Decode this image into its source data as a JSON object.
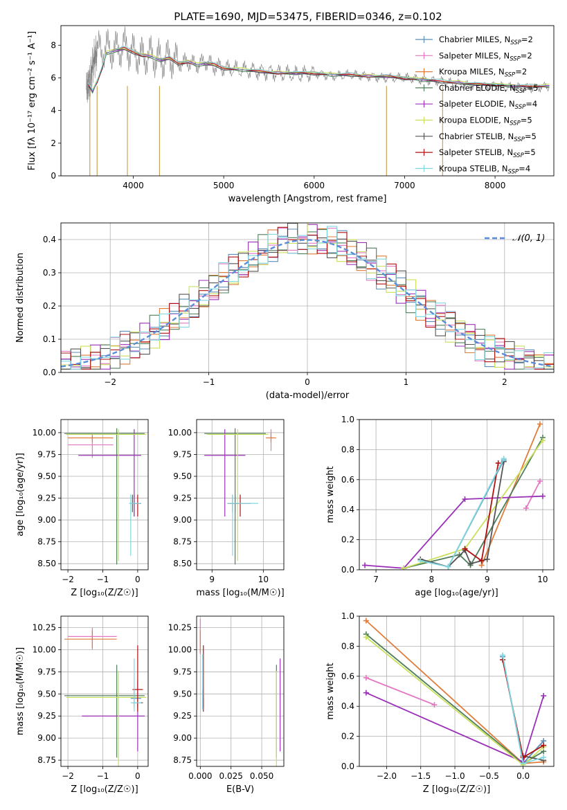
{
  "figure": {
    "title": "PLATE=1690, MJD=53475, FIBERID=0346, z=0.102"
  },
  "models": [
    {
      "name": "Chabrier MILES",
      "nssp": "2",
      "color": "#5b8db8"
    },
    {
      "name": "Salpeter MILES",
      "nssp": "2",
      "color": "#e377c2"
    },
    {
      "name": "Kroupa MILES",
      "nssp": "2",
      "color": "#e07b39"
    },
    {
      "name": "Chabrier ELODIE",
      "nssp": "5",
      "color": "#4f7f5a"
    },
    {
      "name": "Salpeter ELODIE",
      "nssp": "4",
      "color": "#9b30b8"
    },
    {
      "name": "Kroupa ELODIE",
      "nssp": "5",
      "color": "#c8e05a"
    },
    {
      "name": "Chabrier STELIB",
      "nssp": "5",
      "color": "#555555"
    },
    {
      "name": "Salpeter STELIB",
      "nssp": "5",
      "color": "#b01010"
    },
    {
      "name": "Kroupa STELIB",
      "nssp": "4",
      "color": "#7fd8e0"
    }
  ],
  "chart_data": [
    {
      "id": "spectrum",
      "type": "line",
      "xlabel": "wavelength [Angstrom, rest frame]",
      "ylabel": "Flux [fλ 10⁻¹⁷ erg cm⁻² s⁻¹ A⁻¹]",
      "xlim": [
        3200,
        8650
      ],
      "ylim": [
        0,
        9.2
      ],
      "xticks": [
        4000,
        5000,
        6000,
        7000,
        8000
      ],
      "yticks": [
        0,
        2,
        4,
        6,
        8
      ],
      "observed_color": "#808080",
      "observed": {
        "x": [
          3480,
          3520,
          3560,
          3600,
          3700,
          3800,
          3900,
          4000,
          4100,
          4200,
          4300,
          4400,
          4500,
          4600,
          4700,
          4800,
          4900,
          5000,
          5200,
          5400,
          5600,
          5800,
          6000,
          6200,
          6400,
          6600,
          6800,
          7000,
          7200,
          7400,
          7600,
          7800,
          8000,
          8200,
          8400,
          8600
        ],
        "y": [
          5.3,
          5.8,
          7.0,
          7.6,
          7.8,
          7.7,
          7.9,
          7.5,
          7.3,
          7.4,
          7.1,
          7.2,
          6.9,
          7.0,
          6.8,
          7.0,
          6.7,
          6.6,
          6.5,
          6.4,
          6.3,
          6.2,
          6.3,
          6.1,
          6.2,
          6.1,
          6.0,
          6.0,
          5.9,
          5.8,
          5.6,
          5.5,
          5.5,
          5.4,
          5.4,
          5.5
        ]
      },
      "model_fit": {
        "x": [
          3500,
          3550,
          3600,
          3650,
          3700,
          3800,
          3900,
          4000,
          4100,
          4200,
          4300,
          4400,
          4500,
          4600,
          4700,
          4800,
          4900,
          5000,
          5200,
          5400,
          5600,
          5800,
          6000,
          6200,
          6400,
          6600,
          6800,
          7000,
          7200,
          7400,
          7600,
          7800,
          8000,
          8200,
          8400,
          8600
        ],
        "y": [
          5.6,
          5.2,
          5.8,
          6.5,
          7.5,
          7.7,
          7.8,
          7.6,
          7.4,
          7.3,
          7.1,
          7.2,
          6.9,
          7.0,
          6.8,
          6.9,
          6.8,
          6.6,
          6.5,
          6.4,
          6.3,
          6.3,
          6.3,
          6.2,
          6.2,
          6.1,
          6.1,
          6.0,
          5.9,
          5.8,
          5.7,
          5.6,
          5.6,
          5.5,
          5.5,
          5.5
        ]
      }
    },
    {
      "id": "residuals",
      "type": "histogram",
      "xlabel": "(data-model)/error",
      "ylabel": "Normed distribution",
      "xlim": [
        -2.5,
        2.5
      ],
      "ylim": [
        0,
        0.45
      ],
      "xticks": [
        -2,
        -1,
        0,
        1,
        2
      ],
      "yticks": [
        0.0,
        0.1,
        0.2,
        0.3,
        0.4
      ],
      "gaussian_label": "𝒩(0, 1)",
      "gaussian_color": "#5b8dd9"
    },
    {
      "id": "age-vs-z",
      "type": "errorbar",
      "xlabel": "Z [log₁₀(Z/Z☉)]",
      "ylabel": "age  [log₁₀(age/yr)]",
      "xlim": [
        -2.2,
        0.3
      ],
      "ylim": [
        8.43,
        10.15
      ],
      "xticks": [
        -2,
        -1,
        0
      ],
      "yticks": [
        8.5,
        8.75,
        9.0,
        9.25,
        9.5,
        9.75,
        10.0
      ],
      "points": [
        {
          "m": 0,
          "x": -0.1,
          "y": 9.19,
          "xerr": [
            0.1,
            0.2
          ],
          "yerr": [
            0.15,
            0.1
          ]
        },
        {
          "m": 1,
          "x": -1.3,
          "y": 9.86,
          "xerr": [
            0.7,
            0.6
          ],
          "yerr": [
            0.15,
            0.1
          ]
        },
        {
          "m": 2,
          "x": -1.3,
          "y": 9.94,
          "xerr": [
            0.7,
            0.6
          ],
          "yerr": [
            0.05,
            0.05
          ]
        },
        {
          "m": 3,
          "x": -0.6,
          "y": 9.99,
          "xerr": [
            1.5,
            0.8
          ],
          "yerr": [
            1.5,
            0.06
          ]
        },
        {
          "m": 4,
          "x": -0.1,
          "y": 9.74,
          "xerr": [
            1.6,
            0.2
          ],
          "yerr": [
            0.7,
            0.3
          ]
        },
        {
          "m": 5,
          "x": -0.55,
          "y": 9.98,
          "xerr": [
            1.5,
            0.8
          ],
          "yerr": [
            1.45,
            0.06
          ]
        },
        {
          "m": 6,
          "x": -0.15,
          "y": 9.19,
          "xerr": [
            0.05,
            0.05
          ],
          "yerr": [
            0.1,
            0.1
          ]
        },
        {
          "m": 7,
          "x": 0.0,
          "y": 9.19,
          "xerr": [
            0.1,
            0.1
          ],
          "yerr": [
            0.15,
            0.1
          ]
        },
        {
          "m": 8,
          "x": -0.2,
          "y": 9.19,
          "xerr": [
            0.05,
            0.3
          ],
          "yerr": [
            0.6,
            0.1
          ]
        }
      ]
    },
    {
      "id": "age-vs-mass",
      "type": "errorbar",
      "xlabel": "mass [log₁₀(M/M☉)]",
      "ylabel": "",
      "xlim": [
        8.7,
        10.4
      ],
      "ylim": [
        8.43,
        10.15
      ],
      "xticks": [
        9,
        10
      ],
      "yticks": [
        8.5,
        8.75,
        9.0,
        9.25,
        9.5,
        9.75,
        10.0
      ],
      "points": [
        {
          "m": 0,
          "x": 9.45,
          "y": 9.19,
          "xerr": [
            0.1,
            0.1
          ],
          "yerr": [
            0.1,
            0.1
          ]
        },
        {
          "m": 1,
          "x": 10.15,
          "y": 9.94,
          "xerr": [
            0.05,
            0.05
          ],
          "yerr": [
            0.15,
            0.1
          ]
        },
        {
          "m": 2,
          "x": 10.15,
          "y": 9.94,
          "xerr": [
            0.1,
            0.1
          ],
          "yerr": [
            0.05,
            0.05
          ]
        },
        {
          "m": 3,
          "x": 9.45,
          "y": 9.99,
          "xerr": [
            0.6,
            0.6
          ],
          "yerr": [
            1.5,
            0.06
          ]
        },
        {
          "m": 4,
          "x": 9.25,
          "y": 9.74,
          "xerr": [
            0.4,
            0.4
          ],
          "yerr": [
            0.7,
            0.3
          ]
        },
        {
          "m": 5,
          "x": 9.5,
          "y": 9.98,
          "xerr": [
            0.6,
            0.6
          ],
          "yerr": [
            1.45,
            0.06
          ]
        },
        {
          "m": 6,
          "x": 9.4,
          "y": 9.19,
          "xerr": [
            0.1,
            0.1
          ],
          "yerr": [
            0.1,
            0.1
          ]
        },
        {
          "m": 7,
          "x": 9.55,
          "y": 9.19,
          "xerr": [
            0.25,
            0.2
          ],
          "yerr": [
            0.15,
            0.1
          ]
        },
        {
          "m": 8,
          "x": 9.4,
          "y": 9.19,
          "xerr": [
            0.1,
            0.5
          ],
          "yerr": [
            0.6,
            0.1
          ]
        }
      ]
    },
    {
      "id": "weight-vs-age",
      "type": "line",
      "xlabel": "age  [log₁₀(age/yr)]",
      "ylabel": "mass weight",
      "xlim": [
        6.7,
        10.2
      ],
      "ylim": [
        0,
        1.0
      ],
      "xticks": [
        7,
        8,
        9,
        10
      ],
      "yticks": [
        0.0,
        0.2,
        0.4,
        0.6,
        0.8,
        1.0
      ],
      "series": [
        {
          "m": 0,
          "x": [
            8.3,
            9.3
          ],
          "y": [
            0.02,
            0.73
          ]
        },
        {
          "m": 1,
          "x": [
            9.7,
            9.95
          ],
          "y": [
            0.41,
            0.59
          ]
        },
        {
          "m": 2,
          "x": [
            8.9,
            9.95
          ],
          "y": [
            0.03,
            0.97
          ]
        },
        {
          "m": 3,
          "x": [
            7.5,
            8.5,
            8.7,
            10.0
          ],
          "y": [
            0.01,
            0.1,
            0.03,
            0.88
          ]
        },
        {
          "m": 4,
          "x": [
            6.8,
            7.5,
            8.6,
            10.0
          ],
          "y": [
            0.03,
            0.01,
            0.47,
            0.49
          ]
        },
        {
          "m": 5,
          "x": [
            7.5,
            8.6,
            10.0
          ],
          "y": [
            0.01,
            0.14,
            0.86
          ]
        },
        {
          "m": 6,
          "x": [
            7.8,
            8.3,
            8.6,
            8.7,
            9.0,
            9.3
          ],
          "y": [
            0.07,
            0.02,
            0.13,
            0.04,
            0.07,
            0.72
          ]
        },
        {
          "m": 7,
          "x": [
            8.6,
            8.9,
            9.2
          ],
          "y": [
            0.14,
            0.06,
            0.71
          ]
        },
        {
          "m": 8,
          "x": [
            7.8,
            8.3,
            9.3
          ],
          "y": [
            0.06,
            0.02,
            0.74
          ]
        }
      ]
    },
    {
      "id": "mass-vs-z",
      "type": "errorbar",
      "xlabel": "Z [log₁₀(Z/Z☉)]",
      "ylabel": "mass [log₁₀(M/M☉)]",
      "xlim": [
        -2.2,
        0.3
      ],
      "ylim": [
        8.68,
        10.38
      ],
      "xticks": [
        -2,
        -1,
        0
      ],
      "yticks": [
        8.75,
        9.0,
        9.25,
        9.5,
        9.75,
        10.0,
        10.25
      ],
      "points": [
        {
          "m": 0,
          "x": -0.1,
          "y": 9.45,
          "xerr": [
            0.1,
            0.2
          ],
          "yerr": [
            0.1,
            0.1
          ]
        },
        {
          "m": 1,
          "x": -1.3,
          "y": 10.15,
          "xerr": [
            0.7,
            0.7
          ],
          "yerr": [
            0.15,
            0.1
          ]
        },
        {
          "m": 2,
          "x": -1.3,
          "y": 10.12,
          "xerr": [
            0.8,
            0.7
          ],
          "yerr": [
            0.1,
            0.1
          ]
        },
        {
          "m": 3,
          "x": -0.6,
          "y": 9.48,
          "xerr": [
            1.5,
            0.8
          ],
          "yerr": [
            0.7,
            0.35
          ]
        },
        {
          "m": 4,
          "x": 0.0,
          "y": 9.25,
          "xerr": [
            1.6,
            0.2
          ],
          "yerr": [
            0.4,
            0.4
          ]
        },
        {
          "m": 5,
          "x": -0.55,
          "y": 9.46,
          "xerr": [
            1.5,
            0.8
          ],
          "yerr": [
            0.8,
            0.3
          ]
        },
        {
          "m": 6,
          "x": 0.0,
          "y": 9.4,
          "xerr": [
            0.15,
            0.15
          ],
          "yerr": [
            0.05,
            0.05
          ]
        },
        {
          "m": 7,
          "x": 0.0,
          "y": 9.55,
          "xerr": [
            0.15,
            0.15
          ],
          "yerr": [
            0.25,
            0.5
          ]
        },
        {
          "m": 8,
          "x": -0.1,
          "y": 9.4,
          "xerr": [
            0.1,
            0.2
          ],
          "yerr": [
            0.1,
            0.5
          ]
        }
      ]
    },
    {
      "id": "mass-vs-ebv",
      "type": "errorbar",
      "xlabel": "E(B-V)",
      "ylabel": "",
      "xlim": [
        -0.003,
        0.068
      ],
      "ylim": [
        8.68,
        10.38
      ],
      "xticks": [
        0.0,
        0.025,
        0.05
      ],
      "xticklabels": [
        "0.000",
        "0.025",
        "0.050"
      ],
      "yticks": [
        8.75,
        9.0,
        9.25,
        9.5,
        9.75,
        10.0,
        10.25
      ],
      "points": [
        {
          "m": 0,
          "x": 0.002,
          "y": 9.45,
          "xerr": [
            0,
            0
          ],
          "yerr": [
            0.12,
            0.1
          ]
        },
        {
          "m": 1,
          "x": 0.0,
          "y": 10.15,
          "xerr": [
            0,
            0
          ],
          "yerr": [
            0.2,
            0.2
          ]
        },
        {
          "m": 2,
          "x": 0.0,
          "y": 10.12,
          "xerr": [
            0,
            0
          ],
          "yerr": [
            0.15,
            0.1
          ]
        },
        {
          "m": 3,
          "x": 0.062,
          "y": 9.48,
          "xerr": [
            0,
            0
          ],
          "yerr": [
            0.7,
            0.35
          ]
        },
        {
          "m": 4,
          "x": 0.065,
          "y": 9.25,
          "xerr": [
            0,
            0
          ],
          "yerr": [
            0.4,
            0.65
          ]
        },
        {
          "m": 5,
          "x": 0.062,
          "y": 9.46,
          "xerr": [
            0,
            0
          ],
          "yerr": [
            0.8,
            0.3
          ]
        },
        {
          "m": 6,
          "x": 0.0025,
          "y": 9.4,
          "xerr": [
            0,
            0
          ],
          "yerr": [
            0.05,
            0.05
          ]
        },
        {
          "m": 7,
          "x": 0.0025,
          "y": 9.55,
          "xerr": [
            0,
            0
          ],
          "yerr": [
            0.25,
            0.5
          ]
        },
        {
          "m": 8,
          "x": 0.002,
          "y": 9.4,
          "xerr": [
            0,
            0
          ],
          "yerr": [
            0.08,
            0.55
          ]
        }
      ]
    },
    {
      "id": "weight-vs-z",
      "type": "line",
      "xlabel": "Z [log₁₀(Z/Z☉)]",
      "ylabel": "mass weight",
      "xlim": [
        -2.4,
        0.45
      ],
      "ylim": [
        0,
        1.0
      ],
      "xticks": [
        -2.0,
        -1.5,
        -1.0,
        -0.5,
        0.0
      ],
      "xticklabels": [
        "−2.0",
        "−1.5",
        "−1.0",
        "−0.5",
        "0.0"
      ],
      "yticks": [
        0.0,
        0.2,
        0.4,
        0.6,
        0.8,
        1.0
      ],
      "series": [
        {
          "m": 0,
          "x": [
            -0.3,
            0.0,
            0.3
          ],
          "y": [
            0.73,
            0.02,
            0.17
          ]
        },
        {
          "m": 1,
          "x": [
            -2.3,
            -1.3
          ],
          "y": [
            0.59,
            0.41
          ]
        },
        {
          "m": 2,
          "x": [
            -2.3,
            0.0,
            0.3
          ],
          "y": [
            0.97,
            0.02,
            0.03
          ]
        },
        {
          "m": 3,
          "x": [
            -2.3,
            0.0,
            0.3
          ],
          "y": [
            0.88,
            0.02,
            0.1
          ]
        },
        {
          "m": 4,
          "x": [
            -2.3,
            0.0,
            0.3
          ],
          "y": [
            0.49,
            0.03,
            0.47
          ]
        },
        {
          "m": 5,
          "x": [
            -2.3,
            0.0,
            0.3
          ],
          "y": [
            0.86,
            0.01,
            0.13
          ]
        },
        {
          "m": 6,
          "x": [
            0.0,
            0.3
          ],
          "y": [
            0.07,
            0.04
          ]
        },
        {
          "m": 7,
          "x": [
            -0.3,
            0.0,
            0.3
          ],
          "y": [
            0.71,
            0.06,
            0.14
          ]
        },
        {
          "m": 8,
          "x": [
            -0.3,
            0.0,
            0.3
          ],
          "y": [
            0.74,
            0.02,
            0.06
          ]
        }
      ]
    }
  ]
}
